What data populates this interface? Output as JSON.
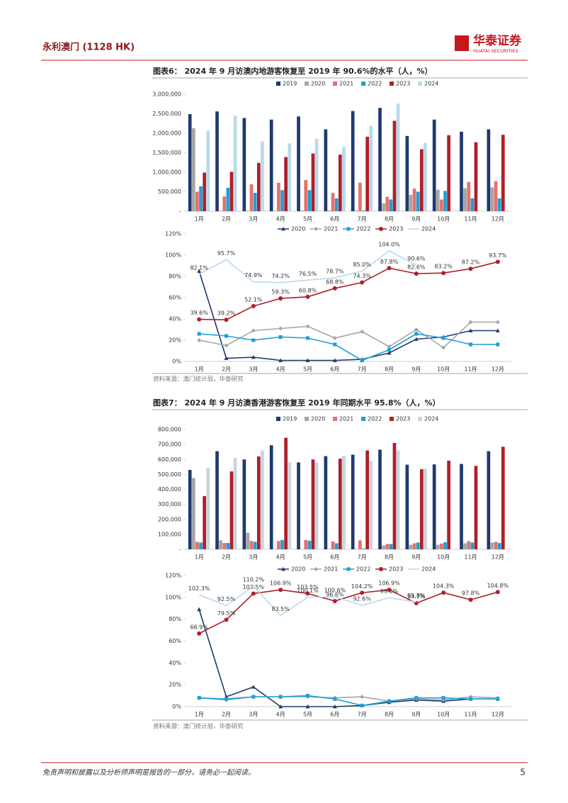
{
  "header": {
    "title": "永利澳门 (1128 HK)",
    "logo": "华泰证券",
    "logo_en": "HUATAI SECURITIES"
  },
  "figures": [
    {
      "caption": "图表6：  2024 年 9 月访澳内地游客恢复至 2019 年 90.6%的水平（人，%）",
      "source": "资料来源：澳门统计局，华泰研究"
    },
    {
      "caption": "图表7：  2024 年 9 月访澳香港游客恢复至 2019 年同期水平 95.8%（人，%）",
      "source": "资料来源：澳门统计局，华泰研究"
    }
  ],
  "chart_data": [
    {
      "type": "bar",
      "categories": [
        "1月",
        "2月",
        "3月",
        "4月",
        "5月",
        "6月",
        "7月",
        "8月",
        "9月",
        "10月",
        "11月",
        "12月"
      ],
      "ylim": [
        0,
        3000000
      ],
      "yticks": [
        {
          "value": 0,
          "label": "-"
        },
        {
          "value": 500000,
          "label": "500,000"
        },
        {
          "value": 1000000,
          "label": "1,000,000"
        },
        {
          "value": 1500000,
          "label": "1,500,000"
        },
        {
          "value": 2000000,
          "label": "2,000,000"
        },
        {
          "value": 2500000,
          "label": "2,500,000"
        },
        {
          "value": 3000000,
          "label": "3,000,000"
        }
      ],
      "series": [
        {
          "name": "2019",
          "color": "#1f3a6e",
          "values": [
            2490000,
            2560000,
            2390000,
            2350000,
            2430000,
            2100000,
            2570000,
            2650000,
            1930000,
            2350000,
            2040000,
            2100000
          ]
        },
        {
          "name": "2020",
          "color": "#a6a6a6",
          "values": [
            2130000,
            15000,
            10000,
            10000,
            20000,
            20000,
            20000,
            200000,
            420000,
            550000,
            590000,
            610000
          ]
        },
        {
          "name": "2021",
          "color": "#e8706a",
          "values": [
            500000,
            380000,
            690000,
            730000,
            800000,
            470000,
            730000,
            370000,
            580000,
            300000,
            750000,
            770000
          ]
        },
        {
          "name": "2022",
          "color": "#1f9fd6",
          "values": [
            640000,
            600000,
            470000,
            540000,
            540000,
            330000,
            20000,
            300000,
            500000,
            520000,
            330000,
            330000
          ]
        },
        {
          "name": "2023",
          "color": "#b01f2a",
          "values": [
            990000,
            1010000,
            1240000,
            1390000,
            1480000,
            1450000,
            1910000,
            2320000,
            1590000,
            1950000,
            1770000,
            1960000
          ]
        },
        {
          "name": "2024",
          "color": "#b9d9ec",
          "values": [
            2060000,
            2450000,
            1790000,
            1740000,
            1860000,
            1650000,
            2190000,
            2760000,
            1750000,
            null,
            null,
            null
          ]
        }
      ]
    },
    {
      "type": "line",
      "categories": [
        "1月",
        "2月",
        "3月",
        "4月",
        "5月",
        "6月",
        "7月",
        "8月",
        "9月",
        "10月",
        "11月",
        "12月"
      ],
      "ylim": [
        0,
        120
      ],
      "yticks": [
        {
          "value": 0,
          "label": "0%"
        },
        {
          "value": 20,
          "label": "20%"
        },
        {
          "value": 40,
          "label": "40%"
        },
        {
          "value": 60,
          "label": "60%"
        },
        {
          "value": 80,
          "label": "80%"
        },
        {
          "value": 100,
          "label": "100%"
        },
        {
          "value": 120,
          "label": "120%"
        }
      ],
      "series": [
        {
          "name": "2020",
          "color": "#1f3a6e",
          "marker": "triangle",
          "values": [
            85,
            3,
            4,
            1,
            1,
            1,
            2,
            8,
            21,
            23,
            29,
            29
          ]
        },
        {
          "name": "2021",
          "color": "#a6a6a6",
          "marker": "diamond",
          "values": [
            20,
            15,
            29,
            31,
            33,
            22,
            28,
            14,
            30,
            13,
            37,
            37
          ]
        },
        {
          "name": "2022",
          "color": "#1f9fd6",
          "marker": "square",
          "values": [
            26,
            24,
            20,
            23,
            22,
            16,
            1,
            11,
            26,
            22,
            16,
            16
          ]
        },
        {
          "name": "2023",
          "color": "#b01f2a",
          "marker": "circle",
          "values": [
            39.6,
            39.2,
            52.1,
            59.3,
            60.8,
            68.8,
            74.3,
            87.8,
            82.6,
            83.2,
            87.2,
            93.7
          ],
          "value_labels": [
            "39.6%",
            "39.2%",
            "52.1%",
            "59.3%",
            "60.8%",
            "68.8%",
            "74.3%",
            "87.8%",
            "82.6%",
            "83.2%",
            "87.2%",
            "93.7%"
          ]
        },
        {
          "name": "2024",
          "color": "#b9d9ec",
          "values": [
            82.1,
            95.7,
            74.9,
            74.2,
            76.5,
            78.7,
            85.0,
            104.0,
            90.6,
            null,
            null,
            null
          ],
          "value_labels": [
            "82.1%",
            "95.7%",
            "74.9%",
            "74.2%",
            "76.5%",
            "78.7%",
            "85.0%",
            "104.0%",
            "90.6%",
            null,
            null,
            null
          ]
        }
      ]
    },
    {
      "type": "bar",
      "categories": [
        "1月",
        "2月",
        "3月",
        "4月",
        "5月",
        "6月",
        "7月",
        "8月",
        "9月",
        "10月",
        "11月",
        "12月"
      ],
      "ylim": [
        0,
        800000
      ],
      "yticks": [
        {
          "value": 0,
          "label": "-"
        },
        {
          "value": 100000,
          "label": "100,000"
        },
        {
          "value": 200000,
          "label": "200,000"
        },
        {
          "value": 300000,
          "label": "300,000"
        },
        {
          "value": 400000,
          "label": "400,000"
        },
        {
          "value": 500000,
          "label": "500,000"
        },
        {
          "value": 600000,
          "label": "600,000"
        },
        {
          "value": 700000,
          "label": "700,000"
        },
        {
          "value": 800000,
          "label": "800,000"
        }
      ],
      "series": [
        {
          "name": "2019",
          "color": "#1f3a6e",
          "values": [
            530000,
            655000,
            600000,
            695000,
            580000,
            622000,
            632000,
            665000,
            565000,
            567000,
            570000,
            655000
          ]
        },
        {
          "name": "2020",
          "color": "#a6a6a6",
          "values": [
            475000,
            60000,
            110000,
            1000,
            1000,
            1000,
            2000,
            25000,
            30000,
            30000,
            40000,
            45000
          ]
        },
        {
          "name": "2021",
          "color": "#e8706a",
          "values": [
            50000,
            42000,
            55000,
            55000,
            62000,
            52000,
            60000,
            35000,
            40000,
            38000,
            55000,
            50000
          ]
        },
        {
          "name": "2022",
          "color": "#1f9fd6",
          "values": [
            45000,
            42000,
            50000,
            62000,
            57000,
            40000,
            5000,
            35000,
            45000,
            47000,
            45000,
            42000
          ]
        },
        {
          "name": "2023",
          "color": "#b01f2a",
          "values": [
            355000,
            520000,
            620000,
            745000,
            600000,
            605000,
            660000,
            710000,
            535000,
            592000,
            557000,
            685000
          ]
        },
        {
          "name": "2024",
          "color": "#c9d5de",
          "values": [
            545000,
            610000,
            660000,
            580000,
            580000,
            625000,
            590000,
            660000,
            540000,
            null,
            null,
            null
          ]
        }
      ]
    },
    {
      "type": "line",
      "categories": [
        "1月",
        "2月",
        "3月",
        "4月",
        "5月",
        "6月",
        "7月",
        "8月",
        "9月",
        "10月",
        "11月",
        "12月"
      ],
      "ylim": [
        0,
        120
      ],
      "yticks": [
        {
          "value": 0,
          "label": "0%"
        },
        {
          "value": 20,
          "label": "20%"
        },
        {
          "value": 40,
          "label": "40%"
        },
        {
          "value": 60,
          "label": "60%"
        },
        {
          "value": 80,
          "label": "80%"
        },
        {
          "value": 100,
          "label": "100%"
        },
        {
          "value": 120,
          "label": "120%"
        }
      ],
      "series": [
        {
          "name": "2020",
          "color": "#1f3a6e",
          "marker": "triangle",
          "values": [
            89,
            9,
            18,
            0,
            0,
            0,
            1,
            4,
            6,
            5,
            7,
            7
          ]
        },
        {
          "name": "2021",
          "color": "#a6a6a6",
          "marker": "diamond",
          "values": [
            8,
            6,
            9,
            9,
            9,
            8,
            9,
            5,
            7,
            6,
            9,
            8
          ]
        },
        {
          "name": "2022",
          "color": "#1f9fd6",
          "marker": "square",
          "values": [
            8,
            7,
            9,
            9,
            10,
            7,
            1,
            5,
            8,
            8,
            7,
            7
          ]
        },
        {
          "name": "2023",
          "color": "#b01f2a",
          "marker": "circle",
          "values": [
            66.9,
            79.5,
            103.5,
            106.9,
            103.5,
            96.6,
            104.2,
            106.9,
            94.7,
            104.3,
            97.8,
            104.8
          ],
          "value_labels": [
            "66.9%",
            "79.5%",
            "103.5%",
            "106.9%",
            "103.5%",
            "96.6%",
            "104.2%",
            "106.9%",
            "94.7%",
            "104.3%",
            "97.8%",
            "104.8%"
          ]
        },
        {
          "name": "2024",
          "color": "#b9d9ec",
          "values": [
            102.3,
            92.5,
            110.2,
            83.5,
            100.1,
            100.6,
            92.6,
            99.6,
            95.8,
            null,
            null,
            null
          ],
          "value_labels": [
            "102.3%",
            "92.5%",
            "110.2%",
            "83.5%",
            "100.1%",
            "100.6%",
            "92.6%",
            "99.6%",
            "95.8%",
            null,
            null,
            null
          ]
        }
      ]
    }
  ],
  "footer": {
    "disclaimer": "免责声明和披露以及分析师声明是报告的一部分，请务必一起阅读。",
    "page": "5"
  }
}
